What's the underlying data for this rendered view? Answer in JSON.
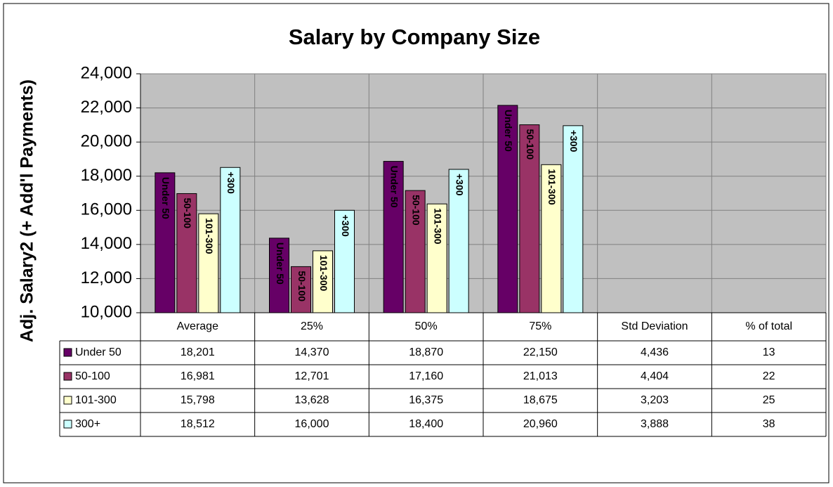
{
  "chart_data": {
    "type": "bar",
    "title": "Salary by Company Size",
    "y_label": "Adj. Salary2 (+ Add'l Payments)",
    "categories": [
      "Average",
      "25%",
      "50%",
      "75%",
      "Std Deviation",
      "% of total"
    ],
    "ylim": [
      10000,
      24000
    ],
    "yticks": [
      {
        "value": 10000,
        "label": "10,000"
      },
      {
        "value": 12000,
        "label": "12,000"
      },
      {
        "value": 14000,
        "label": "14,000"
      },
      {
        "value": 16000,
        "label": "16,000"
      },
      {
        "value": 18000,
        "label": "18,000"
      },
      {
        "value": 20000,
        "label": "20,000"
      },
      {
        "value": 22000,
        "label": "22,000"
      },
      {
        "value": 24000,
        "label": "24,000"
      }
    ],
    "grid": true,
    "bar_labels": [
      "Under 50",
      "50-100",
      "101-300",
      "+300"
    ],
    "series": [
      {
        "name": "Under 50",
        "color": "#660066",
        "values": [
          18201,
          14370,
          18870,
          22150,
          4436,
          13
        ],
        "value_labels": [
          "18,201",
          "14,370",
          "18,870",
          "22,150",
          "4,436",
          "13"
        ]
      },
      {
        "name": "50-100",
        "color": "#993366",
        "values": [
          16981,
          12701,
          17160,
          21013,
          4404,
          22
        ],
        "value_labels": [
          "16,981",
          "12,701",
          "17,160",
          "21,013",
          "4,404",
          "22"
        ]
      },
      {
        "name": "101-300",
        "color": "#ffffcc",
        "values": [
          15798,
          13628,
          16375,
          18675,
          3203,
          25
        ],
        "value_labels": [
          "15,798",
          "13,628",
          "16,375",
          "18,675",
          "3,203",
          "25"
        ]
      },
      {
        "name": "300+",
        "color": "#ccffff",
        "values": [
          18512,
          16000,
          18400,
          20960,
          3888,
          38
        ],
        "value_labels": [
          "18,512",
          "16,000",
          "18,400",
          "20,960",
          "3,888",
          "38"
        ]
      }
    ]
  }
}
